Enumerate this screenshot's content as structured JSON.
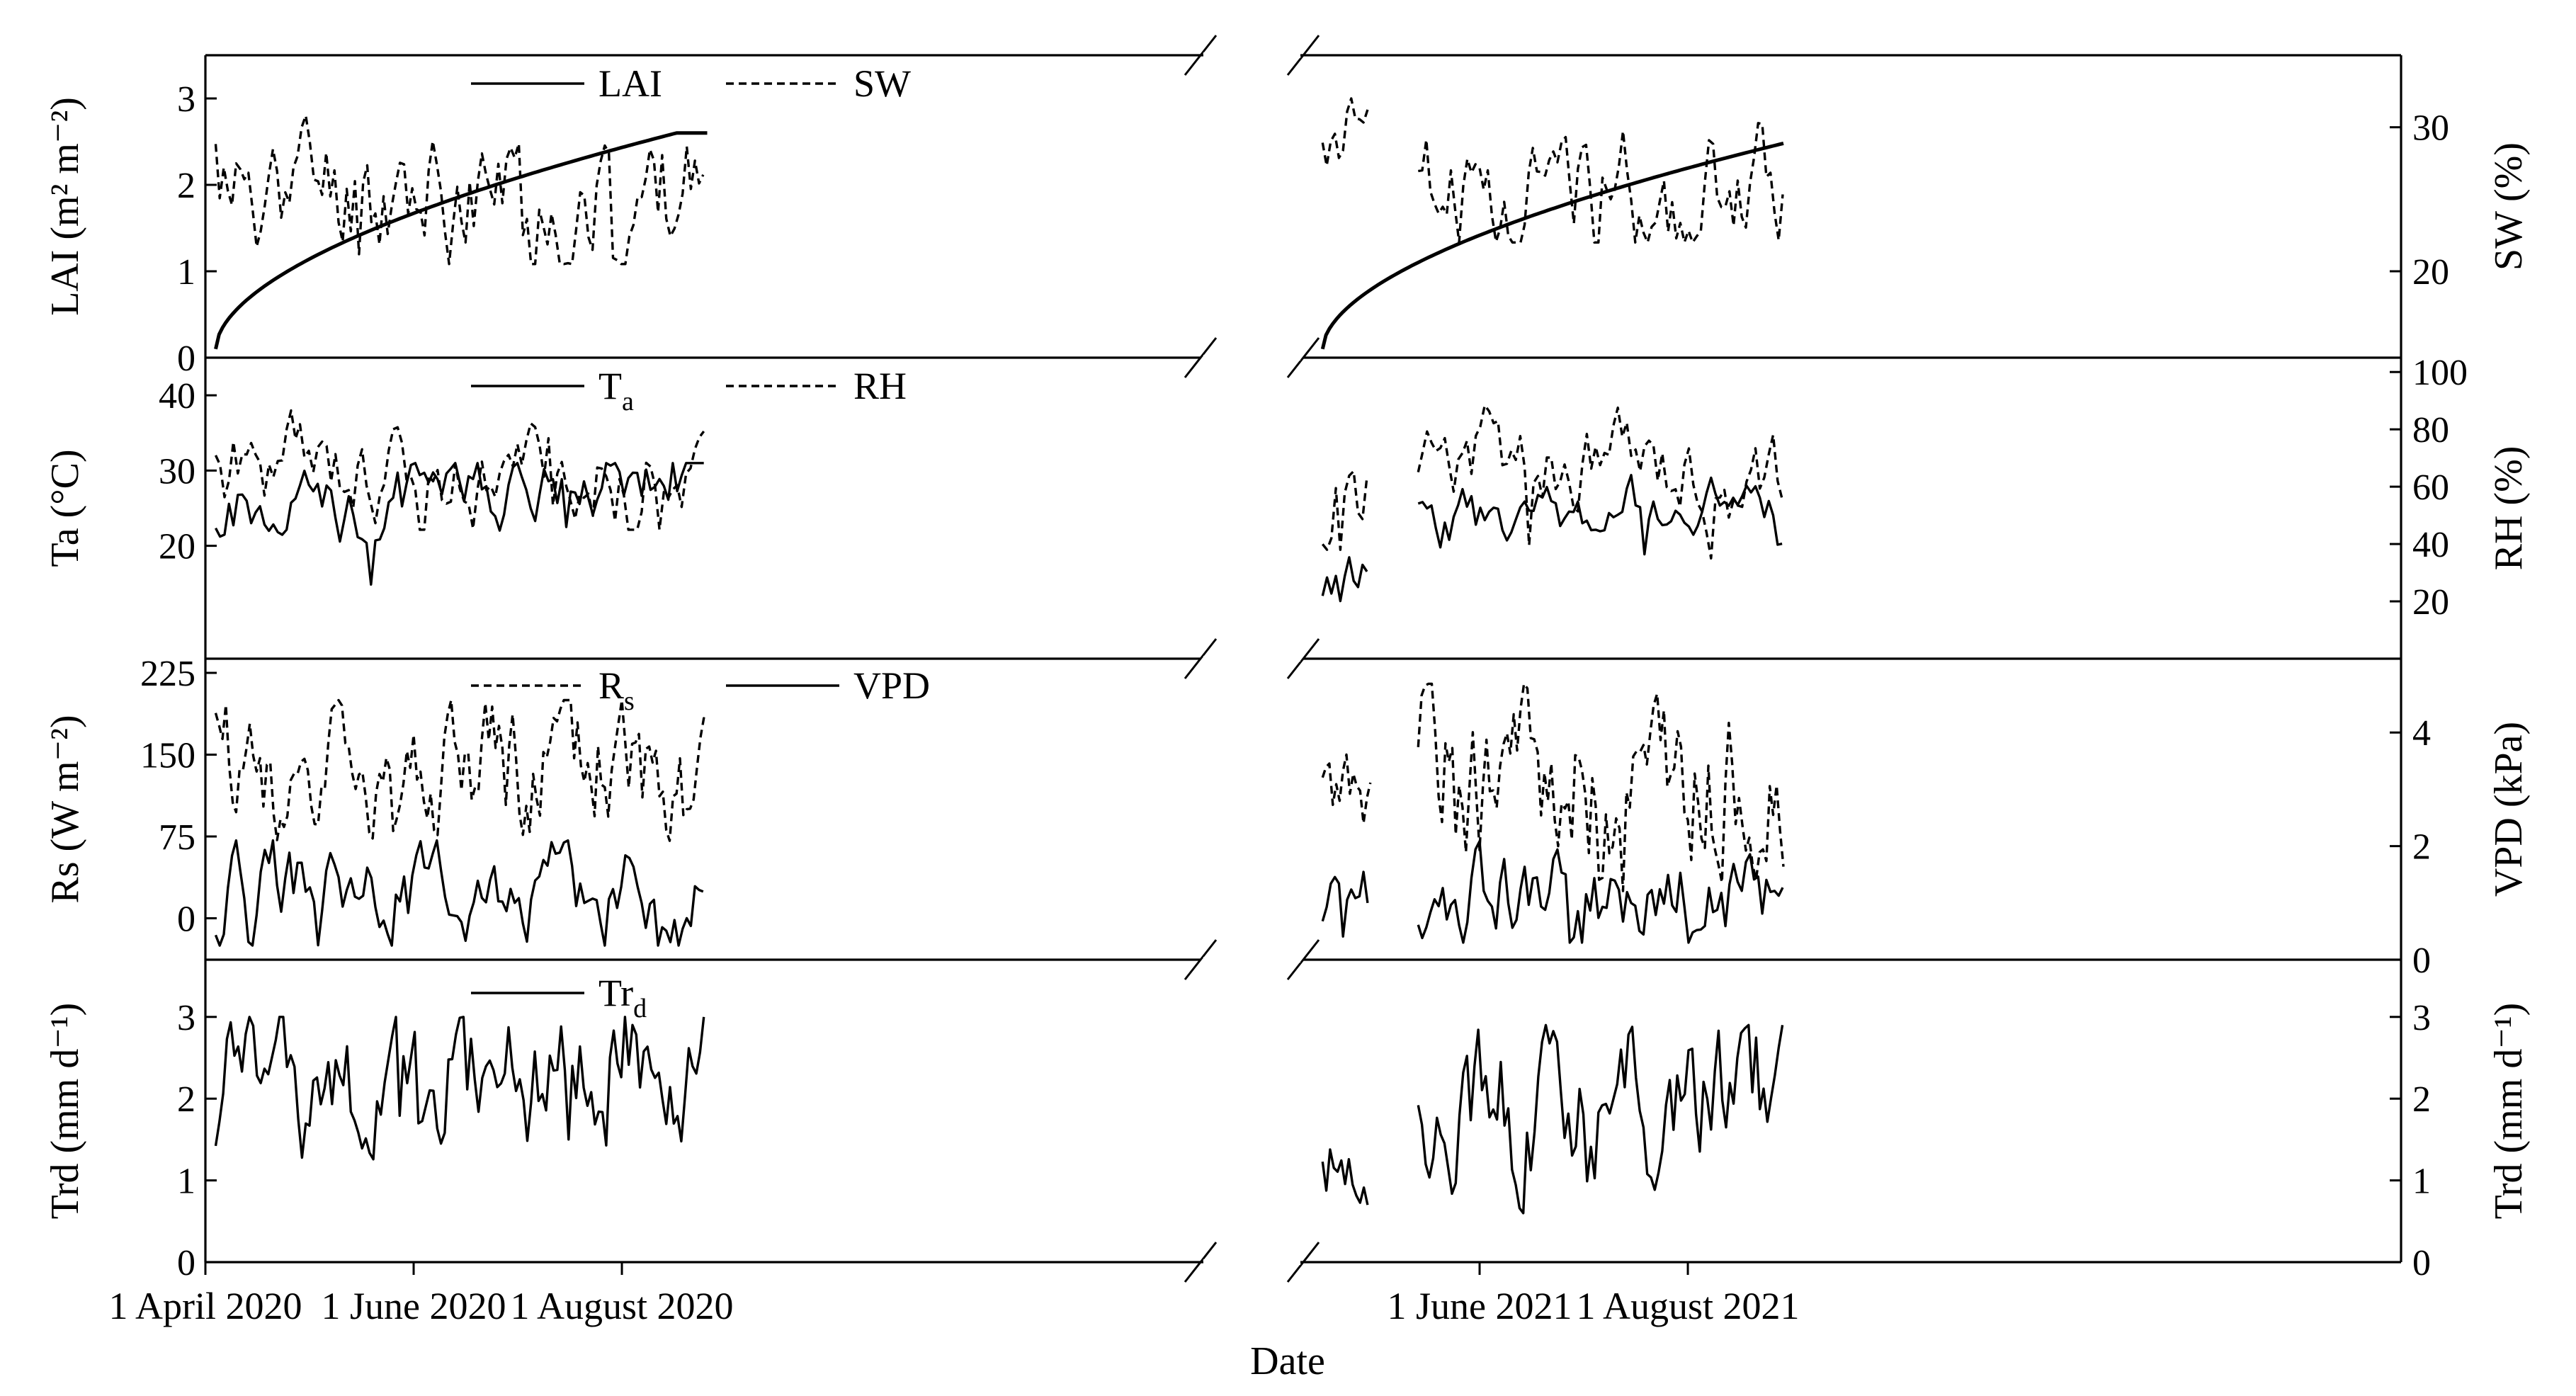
{
  "figure": {
    "x_title": "Date",
    "date_ticks": [
      {
        "label": "1 April 2020",
        "period": 0,
        "day": 0
      },
      {
        "label": "1 June 2020",
        "period": 0,
        "day": 61
      },
      {
        "label": "1 August 2020",
        "period": 0,
        "day": 122
      },
      {
        "label": "1 June 2021",
        "period": 1,
        "day": 61
      },
      {
        "label": "1 August 2021",
        "period": 1,
        "day": 122
      }
    ]
  },
  "chart_data": [
    {
      "type": "line",
      "panel": "A",
      "left_axis": {
        "title": "LAI (m² m⁻²)",
        "range": [
          0,
          3.5
        ],
        "ticks": [
          0,
          1,
          2,
          3
        ]
      },
      "right_axis": {
        "title": "SW (%)",
        "range": [
          14,
          35
        ],
        "ticks": [
          20,
          30
        ]
      },
      "series": [
        {
          "name": "LAI",
          "legend": "LAI",
          "axis": "left",
          "style": "solid",
          "kind": "lai",
          "periods": [
            {
              "start": 3,
              "end": 147,
              "v0": 0.1,
              "v1": 2.6,
              "plateau": 138
            },
            {
              "start": 15,
              "end": 150,
              "v0": 0.1,
              "v1": 2.48
            }
          ]
        },
        {
          "name": "SW",
          "legend": "SW",
          "axis": "right",
          "style": "dashed",
          "kind": "random",
          "periods": [
            {
              "start": 3,
              "end": 147,
              "base": 26,
              "amp": 3.5,
              "min": 20.5,
              "max": 31,
              "seed": 11,
              "step": 1.2
            },
            {
              "start": 15,
              "end": 29,
              "base": 29,
              "amp": 2.5,
              "min": 26.5,
              "max": 32,
              "seed": 12,
              "step": 1.2
            },
            {
              "start": 43,
              "end": 150,
              "base": 26.5,
              "amp": 3,
              "min": 22,
              "max": 31,
              "seed": 13,
              "step": 1.2
            }
          ]
        }
      ]
    },
    {
      "type": "line",
      "panel": "B",
      "left_axis": {
        "title": "Ta (°C)",
        "range": [
          5,
          45
        ],
        "ticks": [
          20,
          30,
          40
        ]
      },
      "right_axis": {
        "title": "RH (%)",
        "range": [
          0,
          105
        ],
        "ticks": [
          20,
          40,
          60,
          80,
          100
        ]
      },
      "series": [
        {
          "name": "Ta",
          "legend": "T",
          "legend_sub": "a",
          "axis": "left",
          "style": "solid",
          "kind": "random",
          "periods": [
            {
              "start": 3,
              "end": 147,
              "base": 24,
              "amp": 3.5,
              "min": 13.5,
              "max": 31,
              "seed": 21,
              "step": 1.3,
              "trend": 0.05
            },
            {
              "start": 15,
              "end": 29,
              "base": 18,
              "amp": 3,
              "min": 10,
              "max": 22,
              "seed": 22,
              "step": 1.3
            },
            {
              "start": 43,
              "end": 150,
              "base": 23,
              "amp": 3,
              "min": 14,
              "max": 31.5,
              "seed": 23,
              "step": 1.3,
              "trend": 0.03
            }
          ]
        },
        {
          "name": "RH",
          "legend": "RH",
          "axis": "right",
          "style": "dashed",
          "kind": "random",
          "periods": [
            {
              "start": 3,
              "end": 147,
              "base": 68,
              "amp": 12,
              "min": 45,
              "max": 88,
              "seed": 31,
              "step": 1.3
            },
            {
              "start": 15,
              "end": 29,
              "base": 55,
              "amp": 14,
              "min": 38,
              "max": 88,
              "seed": 32,
              "step": 1.3
            },
            {
              "start": 43,
              "end": 150,
              "base": 70,
              "amp": 12,
              "min": 35,
              "max": 89,
              "seed": 33,
              "step": 1.3
            }
          ]
        }
      ]
    },
    {
      "type": "line",
      "panel": "C",
      "left_axis": {
        "title": "Rs (W m⁻²)",
        "range": [
          -38,
          238
        ],
        "ticks": [
          0,
          75,
          150,
          225
        ]
      },
      "right_axis": {
        "title": "VPD (kPa)",
        "range": [
          0,
          5.3
        ],
        "ticks": [
          0,
          2,
          4
        ]
      },
      "series": [
        {
          "name": "Rs",
          "legend": "R",
          "legend_sub": "s",
          "axis": "left",
          "style": "dashed",
          "kind": "random",
          "periods": [
            {
              "start": 3,
              "end": 147,
              "base": 140,
              "amp": 50,
              "min": 25,
              "max": 200,
              "seed": 41,
              "step": 1
            },
            {
              "start": 15,
              "end": 29,
              "base": 110,
              "amp": 30,
              "min": 55,
              "max": 155,
              "seed": 42,
              "step": 1
            },
            {
              "start": 43,
              "end": 150,
              "base": 140,
              "amp": 55,
              "min": 25,
              "max": 215,
              "seed": 43,
              "step": 1
            }
          ]
        },
        {
          "name": "VPD",
          "legend": "VPD",
          "axis": "right",
          "style": "solid",
          "kind": "random",
          "periods": [
            {
              "start": 3,
              "end": 147,
              "base": 1.3,
              "amp": 0.6,
              "min": 0.25,
              "max": 2.1,
              "seed": 51,
              "step": 1.2
            },
            {
              "start": 15,
              "end": 29,
              "base": 1,
              "amp": 0.5,
              "min": 0.2,
              "max": 1.8,
              "seed": 52,
              "step": 1.2
            },
            {
              "start": 43,
              "end": 150,
              "base": 1.2,
              "amp": 0.6,
              "min": 0.3,
              "max": 2.1,
              "seed": 53,
              "step": 1.2
            }
          ]
        }
      ]
    },
    {
      "type": "line",
      "panel": "D",
      "left_axis": {
        "title": "Trd (mm d⁻¹)",
        "range": [
          0,
          3.7
        ],
        "ticks": [
          0,
          1,
          2,
          3
        ]
      },
      "right_axis": {
        "title": "Trd (mm d⁻¹)",
        "range": [
          0,
          3.7
        ],
        "ticks": [
          0,
          1,
          2,
          3
        ]
      },
      "series": [
        {
          "name": "Trd",
          "legend": "Tr",
          "legend_sub": "d",
          "axis": "left",
          "style": "solid",
          "kind": "random",
          "periods": [
            {
              "start": 3,
              "end": 147,
              "base": 2.1,
              "amp": 0.7,
              "min": 0.15,
              "max": 3,
              "seed": 61,
              "step": 1.1,
              "trend": 0.004
            },
            {
              "start": 15,
              "end": 29,
              "base": 1.2,
              "amp": 0.4,
              "min": 0.7,
              "max": 1.75,
              "seed": 62,
              "step": 1.1
            },
            {
              "start": 43,
              "end": 150,
              "base": 2.1,
              "amp": 0.7,
              "min": 0.6,
              "max": 2.9,
              "seed": 63,
              "step": 1.1
            }
          ]
        }
      ]
    }
  ]
}
